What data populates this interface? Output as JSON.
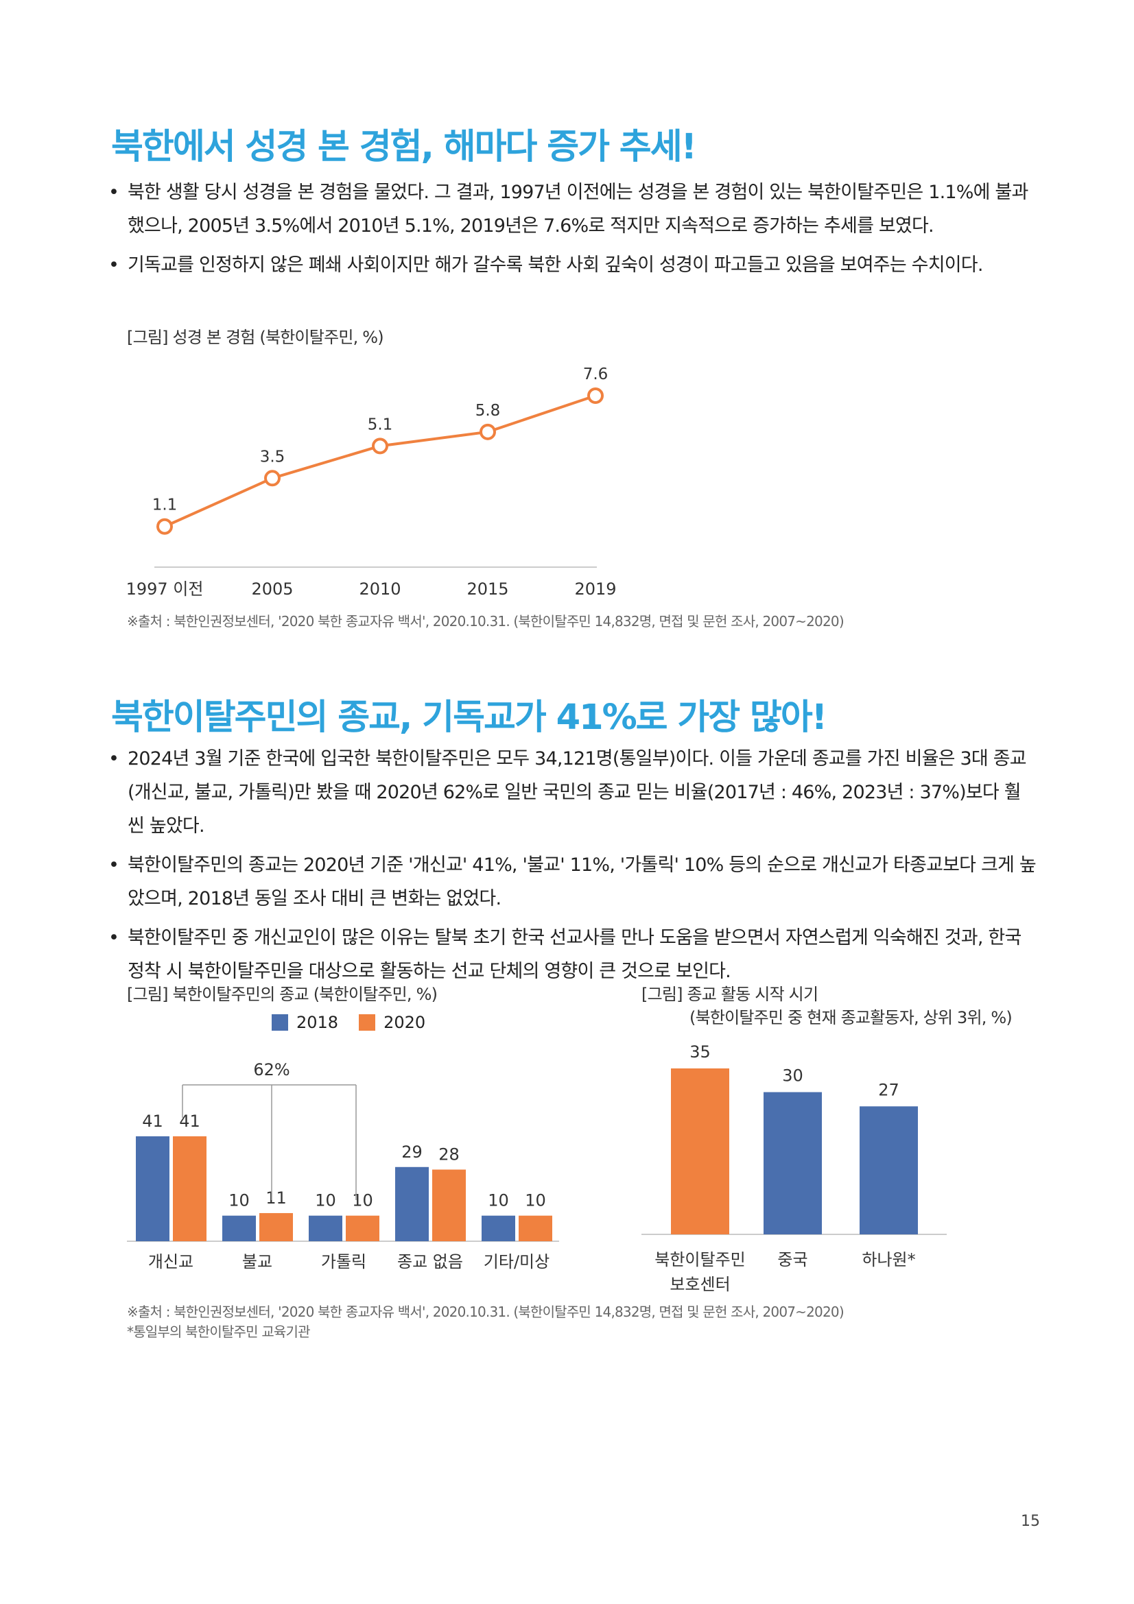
{
  "section1": {
    "title": "북한에서 성경 본 경험, 해마다 증가 추세!",
    "bullets": [
      "북한 생활 당시 성경을 본 경험을 물었다. 그 결과, 1997년 이전에는 성경을 본 경험이 있는 북한이탈주민은 1.1%에 불과했으나, 2005년 3.5%에서 2010년 5.1%, 2019년은 7.6%로 적지만 지속적으로 증가하는 추세를 보였다.",
      "기독교를 인정하지 않은 폐쇄 사회이지만 해가 갈수록 북한 사회 깊숙이 성경이 파고들고 있음을 보여주는 수치이다."
    ],
    "figure_caption": "[그림] 성경 본 경험 (북한이탈주민, %)",
    "source": "※출처 : 북한인권정보센터, '2020 북한 종교자유 백서', 2020.10.31. (북한이탈주민 14,832명, 면접 및 문헌 조사, 2007~2020)"
  },
  "section2": {
    "title": "북한이탈주민의 종교, 기독교가 41%로 가장 많아!",
    "bullets": [
      "2024년 3월 기준 한국에 입국한 북한이탈주민은 모두 34,121명(통일부)이다. 이들 가운데 종교를 가진 비율은 3대 종교(개신교, 불교, 가톨릭)만 봤을 때 2020년 62%로 일반 국민의 종교 믿는 비율(2017년 : 46%, 2023년 : 37%)보다 훨씬 높았다.",
      "북한이탈주민의 종교는 2020년 기준 '개신교' 41%, '불교' 11%, '가톨릭' 10% 등의 순으로 개신교가 타종교보다 크게 높았으며, 2018년 동일 조사 대비 큰 변화는 없었다.",
      "북한이탈주민 중 개신교인이 많은 이유는 탈북 초기 한국 선교사를 만나 도움을 받으면서 자연스럽게 익숙해진 것과, 한국 정착 시 북한이탈주민을 대상으로 활동하는 선교 단체의 영향이 큰 것으로 보인다."
    ],
    "figure1_caption": "[그림] 북한이탈주민의 종교 (북한이탈주민, %)",
    "figure2_caption_line1": "[그림] 종교 활동 시작 시기",
    "figure2_caption_line2": "(북한이탈주민 중 현재 종교활동자, 상위 3위, %)",
    "source": "※출처 : 북한인권정보센터, '2020 북한 종교자유 백서', 2020.10.31. (북한이탈주민 14,832명, 면접 및 문헌 조사, 2007~2020)",
    "footnote": "*통일부의 북한이탈주민 교육기관"
  },
  "page_number": "15",
  "chart_data": [
    {
      "type": "line",
      "title": "[그림] 성경 본 경험 (북한이탈주민, %)",
      "categories": [
        "1997 이전",
        "2005",
        "2010",
        "2015",
        "2019"
      ],
      "values": [
        1.1,
        3.5,
        5.1,
        5.8,
        7.6
      ],
      "labels": [
        "1.1",
        "3.5",
        "5.1",
        "5.8",
        "7.6"
      ],
      "color": "#f0813f",
      "grid": false
    },
    {
      "type": "bar",
      "title": "[그림] 북한이탈주민의 종교 (북한이탈주민, %)",
      "categories": [
        "개신교",
        "불교",
        "가톨릭",
        "종교 없음",
        "기타/미상"
      ],
      "series": [
        {
          "name": "2018",
          "values": [
            41,
            10,
            10,
            29,
            10
          ],
          "color": "#4a6fae"
        },
        {
          "name": "2020",
          "values": [
            41,
            11,
            10,
            28,
            10
          ],
          "color": "#f0813f"
        }
      ],
      "annotation": "62%",
      "legend": "top"
    },
    {
      "type": "bar",
      "title": "[그림] 종교 활동 시작 시기",
      "categories": [
        "북한이탈주민 보호센터",
        "중국",
        "하나원*"
      ],
      "category_lines": [
        [
          "북한이탈주민",
          "보호센터"
        ],
        [
          "중국"
        ],
        [
          "하나원*"
        ]
      ],
      "values": [
        35,
        30,
        27
      ],
      "colors": [
        "#f0813f",
        "#4a6fae",
        "#4a6fae"
      ]
    }
  ]
}
